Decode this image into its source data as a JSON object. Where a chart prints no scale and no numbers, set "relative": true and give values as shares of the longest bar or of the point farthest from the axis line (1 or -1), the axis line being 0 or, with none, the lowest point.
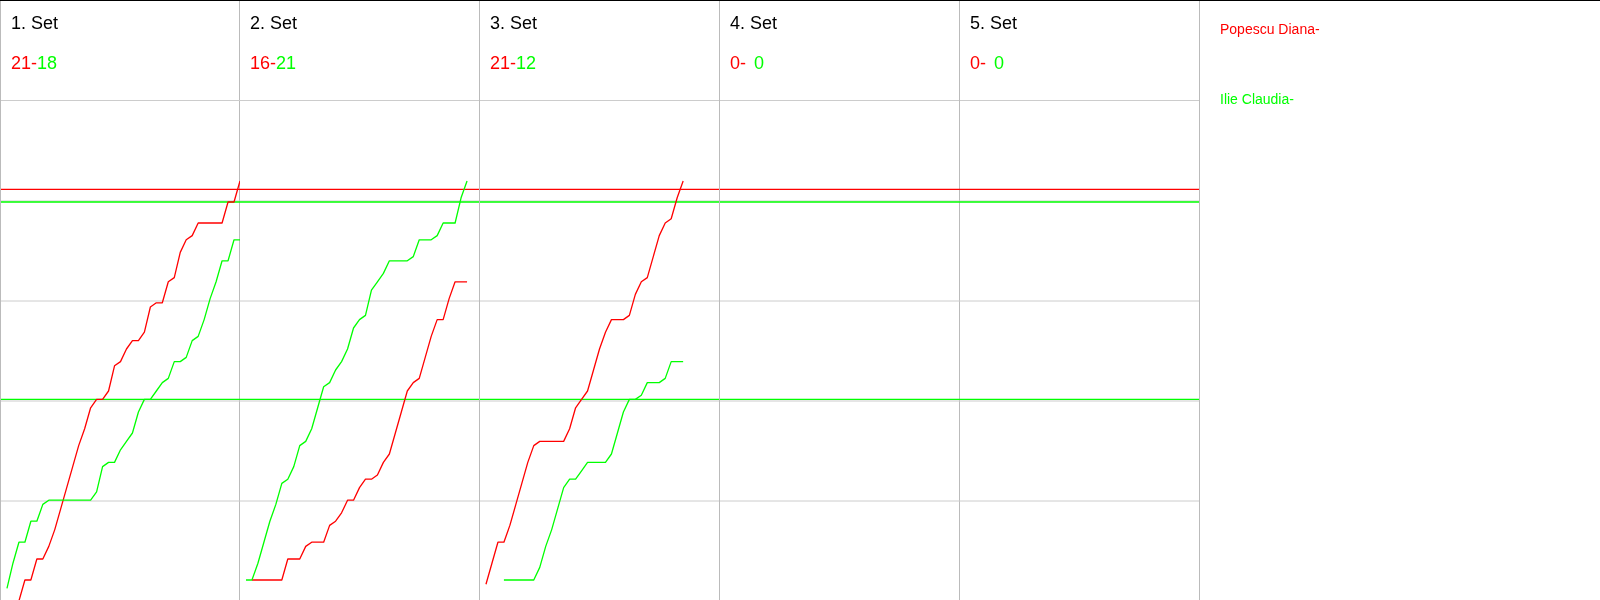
{
  "chart_data": [
    {
      "type": "line",
      "title": "1. Set",
      "annotations": [
        "21-",
        "18"
      ],
      "relative": true,
      "grid": "y",
      "marker": "none",
      "categories": [
        null,
        null,
        null,
        null,
        null,
        null,
        null,
        null,
        null,
        null,
        null,
        null,
        null,
        null,
        null,
        null,
        null,
        null,
        null,
        null,
        null,
        null,
        null,
        null,
        null,
        null,
        null,
        null,
        null,
        null,
        null,
        null,
        null,
        null,
        null,
        null,
        null,
        null,
        null,
        null,
        null
      ],
      "ref_lines": [
        {
          "axis": "y",
          "value": 0.98,
          "color": "#ff0000"
        },
        {
          "axis": "y",
          "value": 0.95,
          "color": "#00ff00"
        },
        {
          "axis": "y",
          "value": 0.48,
          "color": "#00ff00"
        }
      ],
      "series": [
        {
          "name": "Popescu Diana-",
          "color": "#ff0000",
          "values": [
            null,
            null,
            null,
            0,
            0.05,
            0.05,
            0.1,
            0.1,
            0.13,
            0.17,
            0.22,
            0.27,
            0.32,
            0.37,
            0.41,
            0.46,
            0.48,
            0.48,
            0.5,
            0.56,
            0.57,
            0.6,
            0.62,
            0.62,
            0.64,
            0.7,
            0.71,
            0.71,
            0.76,
            0.77,
            0.83,
            0.86,
            0.87,
            0.9,
            0.9,
            0.9,
            0.9,
            0.9,
            0.95,
            0.95,
            1
          ]
        },
        {
          "name": "Ilie Claudia-",
          "color": "#00ff00",
          "values": [
            null,
            0.03,
            0.09,
            0.14,
            0.14,
            0.19,
            0.19,
            0.23,
            0.24,
            0.24,
            0.24,
            0.24,
            0.24,
            0.24,
            0.24,
            0.24,
            0.26,
            0.32,
            0.33,
            0.33,
            0.36,
            0.38,
            0.4,
            0.45,
            0.48,
            0.48,
            0.5,
            0.52,
            0.53,
            0.57,
            0.57,
            0.58,
            0.62,
            0.63,
            0.67,
            0.72,
            0.76,
            0.81,
            0.81,
            0.86,
            0.86
          ]
        }
      ]
    },
    {
      "type": "line",
      "title": "2. Set",
      "annotations": [
        "16-",
        "21"
      ],
      "relative": true,
      "grid": "y",
      "marker": "none",
      "categories": [
        null,
        null,
        null,
        null,
        null,
        null,
        null,
        null,
        null,
        null,
        null,
        null,
        null,
        null,
        null,
        null,
        null,
        null,
        null,
        null,
        null,
        null,
        null,
        null,
        null,
        null,
        null,
        null,
        null,
        null,
        null,
        null,
        null,
        null,
        null,
        null,
        null,
        null,
        null,
        null,
        null
      ],
      "ref_lines": [
        {
          "axis": "y",
          "value": 0.98,
          "color": "#ff0000"
        },
        {
          "axis": "y",
          "value": 0.95,
          "color": "#00ff00"
        },
        {
          "axis": "y",
          "value": 0.48,
          "color": "#00ff00"
        }
      ],
      "series": [
        {
          "color": "#ff0000",
          "values": [
            null,
            null,
            0.05,
            0.05,
            0.05,
            0.05,
            0.05,
            0.05,
            0.1,
            0.1,
            0.1,
            0.13,
            0.14,
            0.14,
            0.14,
            0.18,
            0.19,
            0.21,
            0.24,
            0.24,
            0.27,
            0.29,
            0.29,
            0.3,
            0.33,
            0.35,
            0.4,
            0.45,
            0.5,
            0.52,
            0.53,
            0.58,
            0.63,
            0.67,
            0.67,
            0.72,
            0.76,
            0.76,
            0.76,
            null,
            null
          ]
        },
        {
          "color": "#00ff00",
          "values": [
            null,
            0.05,
            0.05,
            0.09,
            0.14,
            0.19,
            0.23,
            0.28,
            0.29,
            0.32,
            0.37,
            0.38,
            0.41,
            0.46,
            0.51,
            0.52,
            0.55,
            0.57,
            0.6,
            0.65,
            0.67,
            0.68,
            0.74,
            0.76,
            0.78,
            0.81,
            0.81,
            0.81,
            0.81,
            0.82,
            0.86,
            0.86,
            0.86,
            0.87,
            0.9,
            0.9,
            0.9,
            0.96,
            1,
            null,
            null
          ]
        }
      ]
    },
    {
      "type": "line",
      "title": "3. Set",
      "annotations": [
        "21-",
        "12"
      ],
      "relative": true,
      "grid": "y",
      "marker": "none",
      "categories": [
        null,
        null,
        null,
        null,
        null,
        null,
        null,
        null,
        null,
        null,
        null,
        null,
        null,
        null,
        null,
        null,
        null,
        null,
        null,
        null,
        null,
        null,
        null,
        null,
        null,
        null,
        null,
        null,
        null,
        null,
        null,
        null,
        null,
        null,
        null,
        null,
        null,
        null,
        null,
        null,
        null
      ],
      "ref_lines": [
        {
          "axis": "y",
          "value": 0.98,
          "color": "#ff0000"
        },
        {
          "axis": "y",
          "value": 0.95,
          "color": "#00ff00"
        },
        {
          "axis": "y",
          "value": 0.48,
          "color": "#00ff00"
        }
      ],
      "series": [
        {
          "color": "#ff0000",
          "values": [
            null,
            0.04,
            0.09,
            0.14,
            0.14,
            0.18,
            0.23,
            0.28,
            0.33,
            0.37,
            0.38,
            0.38,
            0.38,
            0.38,
            0.38,
            0.41,
            0.46,
            0.48,
            0.5,
            0.55,
            0.6,
            0.64,
            0.67,
            0.67,
            0.67,
            0.68,
            0.73,
            0.76,
            0.77,
            0.82,
            0.87,
            0.9,
            0.91,
            0.96,
            1,
            null,
            null,
            null,
            null,
            null,
            null
          ]
        },
        {
          "color": "#00ff00",
          "values": [
            null,
            null,
            null,
            null,
            0.05,
            0.05,
            0.05,
            0.05,
            0.05,
            0.05,
            0.08,
            0.13,
            0.17,
            0.22,
            0.27,
            0.29,
            0.29,
            0.31,
            0.33,
            0.33,
            0.33,
            0.33,
            0.35,
            0.4,
            0.45,
            0.48,
            0.48,
            0.49,
            0.52,
            0.52,
            0.52,
            0.53,
            0.57,
            0.57,
            0.57,
            null,
            null,
            null,
            null,
            null,
            null
          ]
        }
      ]
    },
    {
      "type": "other",
      "title": "4. Set",
      "annotations": [
        "0-",
        "0"
      ]
    },
    {
      "type": "other",
      "title": "5. Set",
      "annotations": [
        "0-",
        "0"
      ]
    }
  ]
}
